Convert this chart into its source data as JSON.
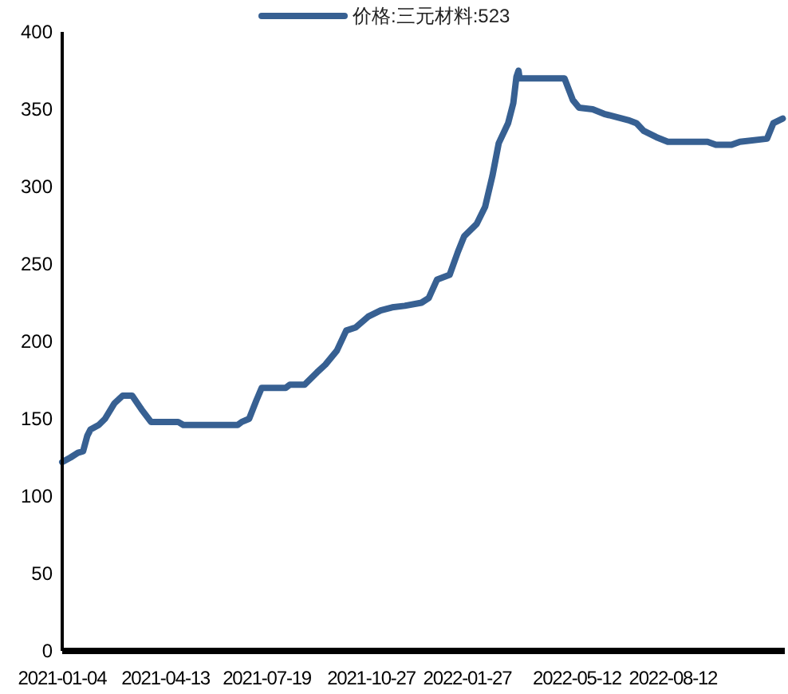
{
  "chart_data": {
    "type": "line",
    "legend": "top",
    "grid": false,
    "xlim": [
      "2021-01-04",
      "2022-11-27"
    ],
    "xticks": [
      "2021-01-04",
      "2021-04-13",
      "2021-07-19",
      "2021-10-27",
      "2022-01-27",
      "2022-05-12",
      "2022-08-12"
    ],
    "ylim": [
      0,
      400
    ],
    "yticks": [
      0,
      50,
      100,
      150,
      200,
      250,
      300,
      350,
      400
    ],
    "x": [
      "2021-01-04",
      "2021-01-12",
      "2021-01-19",
      "2021-01-24",
      "2021-01-28",
      "2021-01-31",
      "2021-02-08",
      "2021-02-14",
      "2021-02-23",
      "2021-03-03",
      "2021-03-12",
      "2021-03-21",
      "2021-03-30",
      "2021-04-25",
      "2021-04-30",
      "2021-06-21",
      "2021-06-25",
      "2021-07-02",
      "2021-07-09",
      "2021-07-14",
      "2021-08-06",
      "2021-08-10",
      "2021-08-24",
      "2021-09-05",
      "2021-09-13",
      "2021-09-24",
      "2021-10-03",
      "2021-10-12",
      "2021-10-24",
      "2021-11-05",
      "2021-11-16",
      "2021-11-28",
      "2021-12-14",
      "2021-12-21",
      "2021-12-29",
      "2022-01-10",
      "2022-01-18",
      "2022-01-24",
      "2022-02-05",
      "2022-02-13",
      "2022-02-20",
      "2022-02-26",
      "2022-03-07",
      "2022-03-12",
      "2022-03-15",
      "2022-03-17",
      "2022-03-18",
      "2022-04-30",
      "2022-05-08",
      "2022-05-14",
      "2022-05-27",
      "2022-06-07",
      "2022-06-30",
      "2022-07-08",
      "2022-07-15",
      "2022-07-27",
      "2022-08-07",
      "2022-09-14",
      "2022-09-22",
      "2022-10-07",
      "2022-10-15",
      "2022-11-10",
      "2022-11-16",
      "2022-11-25"
    ],
    "series": [
      {
        "name": "价格:三元材料:523",
        "color": "#376092",
        "line_style": "solid",
        "values": [
          122,
          125,
          128,
          129,
          139,
          143,
          146,
          150,
          160,
          165,
          165,
          156,
          148,
          148,
          146,
          146,
          148,
          150,
          162,
          170,
          170,
          172,
          172,
          180,
          185,
          194,
          207,
          209,
          216,
          220,
          222,
          223,
          225,
          228,
          240,
          243,
          258,
          268,
          276,
          287,
          307,
          328,
          341,
          354,
          371,
          375,
          370,
          370,
          356,
          351,
          350,
          347,
          343,
          341,
          336,
          332,
          329,
          329,
          327,
          327,
          329,
          331,
          341,
          344
        ]
      }
    ]
  }
}
